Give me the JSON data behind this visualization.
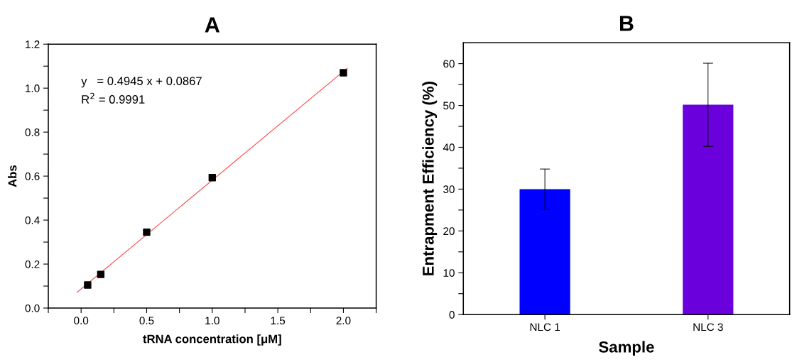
{
  "chart_data": [
    {
      "type": "scatter",
      "title": "A",
      "xlabel": "tRNA concentration [μM]",
      "ylabel": "Abs",
      "series": [
        {
          "type": "scatter",
          "color": "#000000",
          "marker": "square",
          "x": [
            0.05,
            0.15,
            0.5,
            1.0,
            2.0
          ],
          "values": [
            0.105,
            0.153,
            0.345,
            0.593,
            1.07
          ]
        },
        {
          "type": "line",
          "color": "#ff4040",
          "marker": "none",
          "line_style": "solid",
          "x": [
            -0.03,
            2.03
          ],
          "values": [
            0.072,
            1.091
          ]
        }
      ],
      "xlim": [
        -0.25,
        2.25
      ],
      "ylim": [
        0,
        1.2
      ],
      "xticks": [
        {
          "value": -0.25,
          "label": null
        },
        {
          "value": 0,
          "label": "0.0"
        },
        {
          "value": 0.25,
          "label": null
        },
        0.5,
        {
          "value": 0.75,
          "label": null
        },
        {
          "value": 1,
          "label": "1.0"
        },
        {
          "value": 1.25,
          "label": null
        },
        1.5,
        {
          "value": 1.75,
          "label": null
        },
        {
          "value": 2,
          "label": "2.0"
        },
        {
          "value": 2.25,
          "label": null
        }
      ],
      "yticks": [
        {
          "value": 0,
          "label": "0.0"
        },
        {
          "value": 0.1,
          "label": null
        },
        0.2,
        {
          "value": 0.3,
          "label": null
        },
        0.4,
        {
          "value": 0.5,
          "label": null
        },
        0.6,
        {
          "value": 0.7,
          "label": null
        },
        0.8,
        {
          "value": 0.9,
          "label": null
        },
        {
          "value": 1,
          "label": "1.0"
        },
        {
          "value": 1.1,
          "label": null
        },
        1.2
      ],
      "annotations": [
        "y   = 0.4945 x + 0.0867",
        "R$^{2}$ = 0.9991"
      ],
      "grid": false,
      "legend": false
    },
    {
      "type": "bar",
      "title": "B",
      "xlabel": "Sample",
      "ylabel": "Entrapment Efficiency (%)",
      "categories": [
        "NLC 1",
        "NLC 3"
      ],
      "values": [
        30.0,
        50.2
      ],
      "colors": [
        "#0000ff",
        "#6a00dc"
      ],
      "errors": [
        [
          25.1,
          34.8
        ],
        [
          40.2,
          60.1
        ]
      ],
      "ylim": [
        0,
        65
      ],
      "yticks": [
        0,
        {
          "value": 5,
          "label": null
        },
        10,
        {
          "value": 15,
          "label": null
        },
        20,
        {
          "value": 25,
          "label": null
        },
        30,
        {
          "value": 35,
          "label": null
        },
        40,
        {
          "value": 45,
          "label": null
        },
        50,
        {
          "value": 55,
          "label": null
        },
        60
      ],
      "grid": false,
      "legend": false
    }
  ]
}
